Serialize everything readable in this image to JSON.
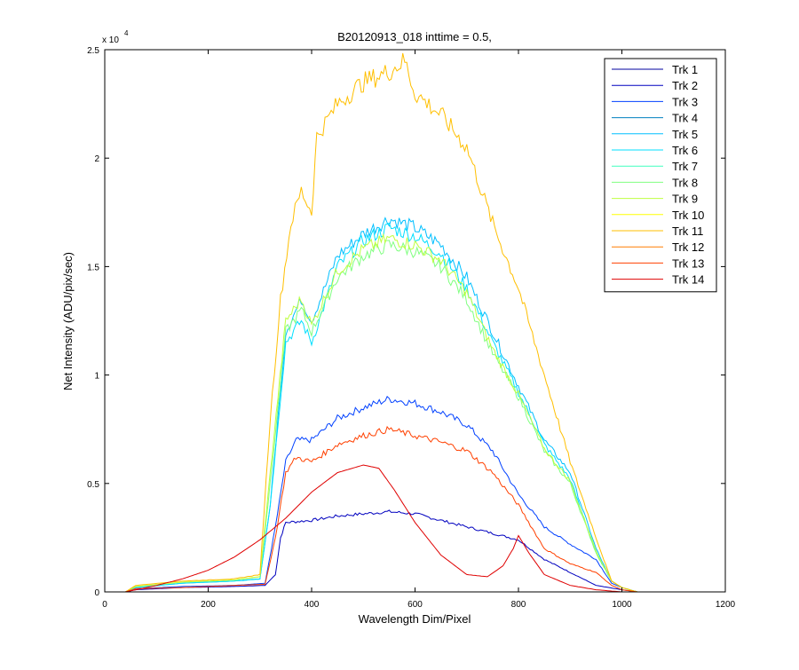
{
  "chart_data": {
    "type": "line",
    "title": "B20120913_018 inttime = 0.5,",
    "xlabel": "Wavelength Dim/Pixel",
    "ylabel": "Net Intensity (ADU/pix/sec)",
    "xlim": [
      0,
      1200
    ],
    "ylim": [
      0,
      25000
    ],
    "y_exponent_label": "x 10",
    "y_exponent_power": "4",
    "x_ticks": [
      0,
      200,
      400,
      600,
      800,
      1000,
      1200
    ],
    "x_tick_labels": [
      "0",
      "200",
      "400",
      "600",
      "800",
      "1000",
      "1200"
    ],
    "y_ticks": [
      0,
      5000,
      10000,
      15000,
      20000,
      25000
    ],
    "y_tick_labels": [
      "0",
      "0.5",
      "1",
      "1.5",
      "2",
      "2.5"
    ],
    "grid": false,
    "legend_position": "top-right",
    "series": [
      {
        "name": "Trk 1",
        "color": "#00009f",
        "points": [
          [
            0,
            0
          ],
          [
            1030,
            0
          ]
        ]
      },
      {
        "name": "Trk 2",
        "color": "#0000bf",
        "points": [
          [
            40,
            0
          ],
          [
            60,
            100
          ],
          [
            150,
            200
          ],
          [
            250,
            250
          ],
          [
            310,
            300
          ],
          [
            330,
            800
          ],
          [
            340,
            2500
          ],
          [
            350,
            3200
          ],
          [
            400,
            3300
          ],
          [
            450,
            3500
          ],
          [
            500,
            3600
          ],
          [
            550,
            3700
          ],
          [
            600,
            3600
          ],
          [
            650,
            3300
          ],
          [
            700,
            3000
          ],
          [
            750,
            2700
          ],
          [
            800,
            2400
          ],
          [
            850,
            1500
          ],
          [
            900,
            900
          ],
          [
            950,
            300
          ],
          [
            1000,
            100
          ],
          [
            1030,
            0
          ]
        ]
      },
      {
        "name": "Trk 3",
        "color": "#0040ff",
        "points": [
          [
            40,
            0
          ],
          [
            60,
            150
          ],
          [
            150,
            250
          ],
          [
            250,
            300
          ],
          [
            310,
            400
          ],
          [
            330,
            3000
          ],
          [
            350,
            6000
          ],
          [
            370,
            7000
          ],
          [
            400,
            7000
          ],
          [
            450,
            8000
          ],
          [
            500,
            8500
          ],
          [
            550,
            8900
          ],
          [
            600,
            8700
          ],
          [
            650,
            8300
          ],
          [
            700,
            7700
          ],
          [
            750,
            6500
          ],
          [
            800,
            4500
          ],
          [
            850,
            3000
          ],
          [
            900,
            2200
          ],
          [
            950,
            1500
          ],
          [
            980,
            400
          ],
          [
            1000,
            200
          ],
          [
            1030,
            0
          ]
        ]
      },
      {
        "name": "Trk 4",
        "color": "#007fbf",
        "points": [
          [
            0,
            0
          ],
          [
            1030,
            0
          ]
        ]
      },
      {
        "name": "Trk 5",
        "color": "#00bfff",
        "points": [
          [
            40,
            0
          ],
          [
            60,
            200
          ],
          [
            150,
            400
          ],
          [
            250,
            500
          ],
          [
            300,
            600
          ],
          [
            320,
            4000
          ],
          [
            350,
            12000
          ],
          [
            380,
            13500
          ],
          [
            400,
            12500
          ],
          [
            450,
            15500
          ],
          [
            500,
            16500
          ],
          [
            550,
            17200
          ],
          [
            600,
            16800
          ],
          [
            650,
            16000
          ],
          [
            700,
            14500
          ],
          [
            750,
            12000
          ],
          [
            800,
            9500
          ],
          [
            850,
            7000
          ],
          [
            900,
            5500
          ],
          [
            950,
            2000
          ],
          [
            980,
            500
          ],
          [
            1000,
            200
          ],
          [
            1030,
            0
          ]
        ]
      },
      {
        "name": "Trk 6",
        "color": "#00dfff",
        "points": [
          [
            40,
            0
          ],
          [
            60,
            200
          ],
          [
            150,
            400
          ],
          [
            250,
            500
          ],
          [
            300,
            600
          ],
          [
            320,
            4000
          ],
          [
            350,
            11500
          ],
          [
            380,
            12500
          ],
          [
            400,
            11500
          ],
          [
            450,
            15000
          ],
          [
            500,
            16200
          ],
          [
            550,
            16800
          ],
          [
            600,
            16400
          ],
          [
            650,
            15600
          ],
          [
            700,
            14000
          ],
          [
            750,
            11500
          ],
          [
            800,
            9200
          ],
          [
            850,
            6800
          ],
          [
            900,
            5200
          ],
          [
            950,
            1800
          ],
          [
            980,
            500
          ],
          [
            1000,
            200
          ],
          [
            1030,
            0
          ]
        ]
      },
      {
        "name": "Trk 7",
        "color": "#40ffbf",
        "points": [
          [
            0,
            0
          ],
          [
            1030,
            0
          ]
        ]
      },
      {
        "name": "Trk 8",
        "color": "#7fff7f",
        "points": [
          [
            40,
            0
          ],
          [
            60,
            250
          ],
          [
            150,
            450
          ],
          [
            250,
            550
          ],
          [
            300,
            700
          ],
          [
            320,
            5000
          ],
          [
            350,
            12000
          ],
          [
            380,
            13000
          ],
          [
            400,
            12000
          ],
          [
            450,
            14500
          ],
          [
            500,
            15500
          ],
          [
            550,
            16000
          ],
          [
            600,
            15700
          ],
          [
            650,
            15000
          ],
          [
            700,
            13500
          ],
          [
            750,
            11000
          ],
          [
            800,
            9000
          ],
          [
            850,
            6500
          ],
          [
            900,
            5000
          ],
          [
            950,
            1800
          ],
          [
            980,
            500
          ],
          [
            1000,
            200
          ],
          [
            1030,
            0
          ]
        ]
      },
      {
        "name": "Trk 9",
        "color": "#bfff40",
        "points": [
          [
            40,
            0
          ],
          [
            60,
            250
          ],
          [
            150,
            450
          ],
          [
            250,
            550
          ],
          [
            300,
            700
          ],
          [
            320,
            5500
          ],
          [
            350,
            12500
          ],
          [
            380,
            13500
          ],
          [
            400,
            12300
          ],
          [
            450,
            14800
          ],
          [
            500,
            15800
          ],
          [
            550,
            16300
          ],
          [
            600,
            16000
          ],
          [
            650,
            15300
          ],
          [
            700,
            13800
          ],
          [
            750,
            11200
          ],
          [
            800,
            9100
          ],
          [
            850,
            6600
          ],
          [
            900,
            5100
          ],
          [
            950,
            1900
          ],
          [
            980,
            500
          ],
          [
            1000,
            200
          ],
          [
            1030,
            0
          ]
        ]
      },
      {
        "name": "Trk 10",
        "color": "#ffff00",
        "points": [
          [
            0,
            0
          ],
          [
            1030,
            0
          ]
        ]
      },
      {
        "name": "Trk 11",
        "color": "#ffbf00",
        "points": [
          [
            40,
            0
          ],
          [
            60,
            300
          ],
          [
            150,
            500
          ],
          [
            250,
            600
          ],
          [
            300,
            800
          ],
          [
            320,
            8000
          ],
          [
            340,
            13500
          ],
          [
            360,
            17000
          ],
          [
            380,
            18500
          ],
          [
            400,
            17500
          ],
          [
            410,
            21000
          ],
          [
            450,
            22500
          ],
          [
            500,
            23500
          ],
          [
            550,
            24000
          ],
          [
            580,
            24500
          ],
          [
            600,
            23000
          ],
          [
            650,
            22000
          ],
          [
            700,
            20500
          ],
          [
            750,
            17000
          ],
          [
            800,
            14000
          ],
          [
            850,
            10000
          ],
          [
            900,
            6000
          ],
          [
            950,
            2500
          ],
          [
            980,
            500
          ],
          [
            1000,
            200
          ],
          [
            1030,
            0
          ]
        ]
      },
      {
        "name": "Trk 12",
        "color": "#ff7f00",
        "points": [
          [
            0,
            0
          ],
          [
            1030,
            0
          ]
        ]
      },
      {
        "name": "Trk 13",
        "color": "#ff4000",
        "points": [
          [
            40,
            0
          ],
          [
            60,
            150
          ],
          [
            150,
            200
          ],
          [
            250,
            300
          ],
          [
            310,
            350
          ],
          [
            330,
            2500
          ],
          [
            350,
            5500
          ],
          [
            370,
            6200
          ],
          [
            400,
            6000
          ],
          [
            450,
            6800
          ],
          [
            500,
            7200
          ],
          [
            550,
            7500
          ],
          [
            600,
            7200
          ],
          [
            650,
            6900
          ],
          [
            700,
            6500
          ],
          [
            750,
            5500
          ],
          [
            800,
            4000
          ],
          [
            850,
            2000
          ],
          [
            900,
            1300
          ],
          [
            950,
            900
          ],
          [
            980,
            300
          ],
          [
            1000,
            100
          ],
          [
            1030,
            0
          ]
        ]
      },
      {
        "name": "Trk 14",
        "color": "#df0000",
        "points": [
          [
            40,
            0
          ],
          [
            100,
            300
          ],
          [
            150,
            600
          ],
          [
            200,
            1000
          ],
          [
            250,
            1600
          ],
          [
            300,
            2400
          ],
          [
            350,
            3400
          ],
          [
            400,
            4600
          ],
          [
            450,
            5500
          ],
          [
            500,
            5850
          ],
          [
            530,
            5700
          ],
          [
            560,
            4700
          ],
          [
            600,
            3200
          ],
          [
            650,
            1700
          ],
          [
            700,
            800
          ],
          [
            740,
            700
          ],
          [
            770,
            1200
          ],
          [
            790,
            2000
          ],
          [
            800,
            2600
          ],
          [
            820,
            1800
          ],
          [
            850,
            800
          ],
          [
            900,
            300
          ],
          [
            950,
            100
          ],
          [
            1000,
            0
          ]
        ]
      }
    ]
  }
}
